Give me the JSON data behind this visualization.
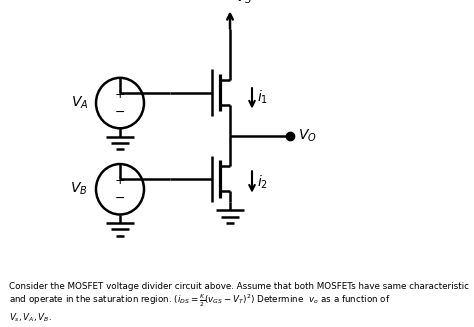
{
  "bg_color": "#ffffff",
  "line_color": "#000000",
  "fig_width": 4.74,
  "fig_height": 3.27,
  "dpi": 100,
  "caption_line1": "Consider the MOSFET voltage divider circuit above. Assume that both MOSFETs have same characteristic",
  "caption_line2": "and operate in the saturation region. ($i_{DS} = \\frac{K}{2}(v_{GS} - V_T)^2$) Determine  $v_o$ as a function of $V_s, V_A, V_B$."
}
